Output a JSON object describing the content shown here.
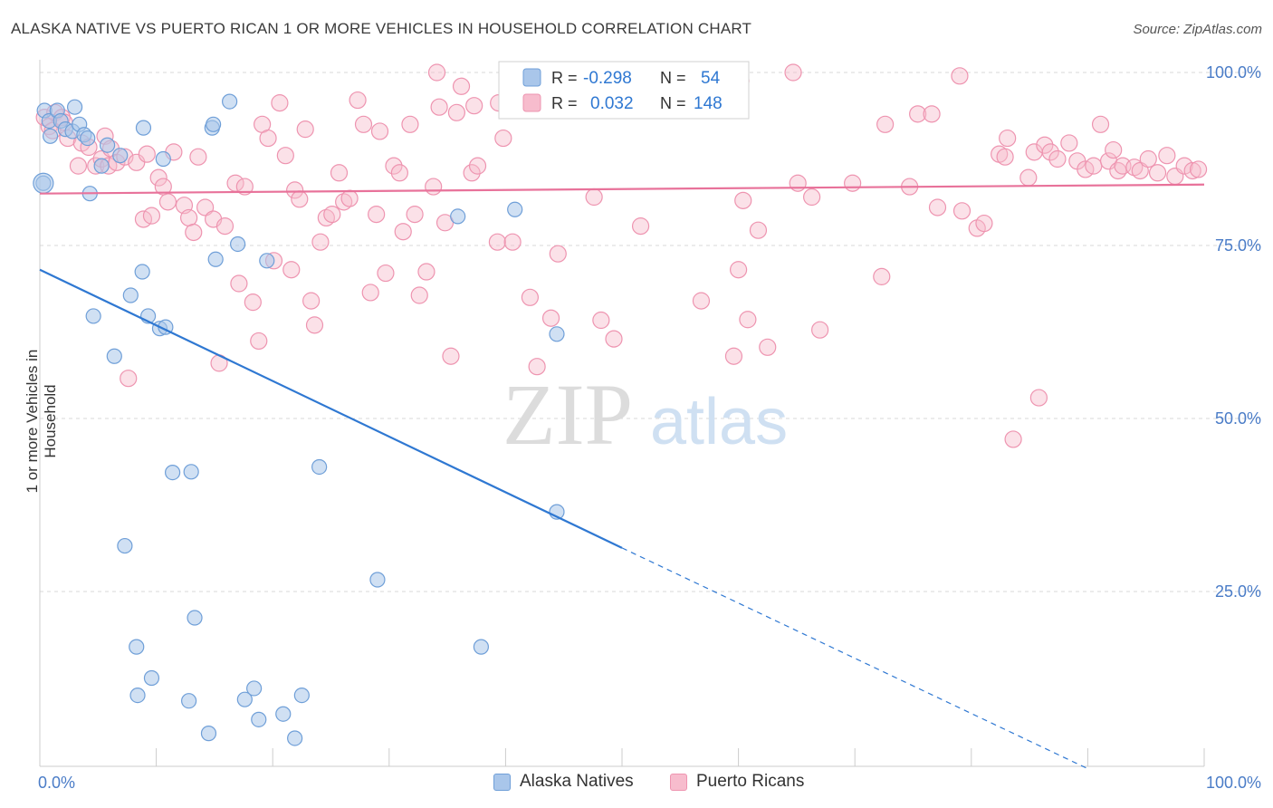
{
  "header": {
    "title": "ALASKA NATIVE VS PUERTO RICAN 1 OR MORE VEHICLES IN HOUSEHOLD CORRELATION CHART",
    "source": "Source: ZipAtlas.com"
  },
  "watermark": {
    "zip": "ZIP",
    "atlas": "atlas"
  },
  "colors": {
    "blue_fill": "#a9c6ea",
    "blue_stroke": "#6f9fd8",
    "blue_line": "#2f78d2",
    "pink_fill": "#f7bccd",
    "pink_stroke": "#ee94b0",
    "pink_line": "#e8729a",
    "tick_text": "#4a7cc7",
    "grid": "#d8d8d8"
  },
  "stats_legend": [
    {
      "r_label": "R =",
      "r_value": "-0.298",
      "n_label": "N =",
      "n_value": "54"
    },
    {
      "r_label": "R =",
      "r_value": "0.032",
      "n_label": "N =",
      "n_value": "148"
    }
  ],
  "chart_data": {
    "type": "scatter",
    "title": "ALASKA NATIVE VS PUERTO RICAN 1 OR MORE VEHICLES IN HOUSEHOLD CORRELATION CHART",
    "xlabel": "",
    "ylabel": "1 or more Vehicles in Household",
    "xlim": [
      0,
      100
    ],
    "ylim": [
      0,
      100
    ],
    "x_tick_labels": [
      "0.0%",
      "100.0%"
    ],
    "y_ticks": [
      {
        "value": 25,
        "label": "25.0%"
      },
      {
        "value": 50,
        "label": "50.0%"
      },
      {
        "value": 75,
        "label": "75.0%"
      },
      {
        "value": 100,
        "label": "100.0%"
      }
    ],
    "grid": true,
    "legend_position": "bottom",
    "series": [
      {
        "name": "Alaska Natives",
        "r": -0.298,
        "n": 54,
        "trend": {
          "x0": 0,
          "y0": 71.5,
          "x1": 50,
          "y1": 31.3,
          "dashed_to_x": 90,
          "dashed_to_y": -0.6
        },
        "points": [
          [
            0.3,
            84.0
          ],
          [
            0.4,
            94.5
          ],
          [
            0.8,
            93.0
          ],
          [
            0.9,
            90.8
          ],
          [
            1.5,
            94.5
          ],
          [
            1.8,
            93.0
          ],
          [
            2.2,
            91.8
          ],
          [
            2.8,
            91.5
          ],
          [
            3.0,
            95.0
          ],
          [
            3.4,
            92.5
          ],
          [
            3.8,
            91.0
          ],
          [
            4.1,
            90.5
          ],
          [
            4.3,
            82.5
          ],
          [
            4.6,
            64.8
          ],
          [
            5.3,
            86.5
          ],
          [
            5.8,
            89.5
          ],
          [
            6.4,
            59.0
          ],
          [
            6.9,
            88.0
          ],
          [
            7.3,
            31.6
          ],
          [
            7.8,
            67.8
          ],
          [
            8.3,
            17.0
          ],
          [
            8.4,
            10.0
          ],
          [
            8.8,
            71.2
          ],
          [
            8.9,
            92.0
          ],
          [
            9.3,
            64.8
          ],
          [
            9.6,
            12.5
          ],
          [
            10.3,
            63.0
          ],
          [
            10.6,
            87.5
          ],
          [
            10.8,
            63.2
          ],
          [
            11.4,
            42.2
          ],
          [
            12.8,
            9.2
          ],
          [
            13.0,
            42.3
          ],
          [
            13.3,
            21.2
          ],
          [
            14.5,
            4.5
          ],
          [
            14.8,
            92.0
          ],
          [
            14.9,
            92.5
          ],
          [
            15.1,
            73.0
          ],
          [
            16.3,
            95.8
          ],
          [
            17.0,
            75.2
          ],
          [
            17.6,
            9.4
          ],
          [
            18.4,
            11.0
          ],
          [
            18.8,
            6.5
          ],
          [
            19.5,
            72.8
          ],
          [
            20.9,
            7.3
          ],
          [
            21.9,
            3.8
          ],
          [
            22.5,
            10.0
          ],
          [
            24.0,
            43.0
          ],
          [
            29.0,
            26.7
          ],
          [
            35.9,
            79.2
          ],
          [
            37.9,
            17.0
          ],
          [
            40.8,
            80.2
          ],
          [
            44.4,
            62.2
          ],
          [
            44.4,
            36.5
          ],
          [
            46.0,
            100.0
          ]
        ]
      },
      {
        "name": "Puerto Ricans",
        "r": 0.032,
        "n": 148,
        "trend": {
          "x0": 0,
          "y0": 82.5,
          "x1": 100,
          "y1": 83.8
        },
        "points": [
          [
            0.4,
            93.5
          ],
          [
            0.8,
            92.2
          ],
          [
            1.1,
            91.6
          ],
          [
            1.3,
            94.2
          ],
          [
            1.9,
            93.5
          ],
          [
            2.1,
            92.8
          ],
          [
            2.4,
            90.5
          ],
          [
            3.3,
            86.5
          ],
          [
            3.6,
            89.8
          ],
          [
            4.2,
            89.2
          ],
          [
            4.8,
            86.5
          ],
          [
            5.3,
            87.5
          ],
          [
            5.6,
            90.8
          ],
          [
            5.9,
            86.5
          ],
          [
            6.1,
            89.0
          ],
          [
            6.6,
            87.0
          ],
          [
            7.3,
            87.8
          ],
          [
            7.6,
            55.8
          ],
          [
            8.3,
            87.0
          ],
          [
            8.9,
            78.8
          ],
          [
            9.2,
            88.2
          ],
          [
            9.6,
            79.3
          ],
          [
            10.2,
            84.8
          ],
          [
            10.6,
            83.5
          ],
          [
            11.0,
            81.3
          ],
          [
            11.5,
            88.5
          ],
          [
            12.4,
            80.8
          ],
          [
            12.8,
            79.0
          ],
          [
            13.2,
            76.9
          ],
          [
            13.6,
            87.8
          ],
          [
            14.2,
            80.5
          ],
          [
            14.9,
            78.8
          ],
          [
            15.4,
            58.0
          ],
          [
            15.9,
            77.8
          ],
          [
            16.8,
            84.0
          ],
          [
            17.1,
            69.5
          ],
          [
            17.6,
            83.5
          ],
          [
            18.3,
            66.8
          ],
          [
            18.8,
            61.2
          ],
          [
            19.1,
            92.5
          ],
          [
            19.6,
            90.5
          ],
          [
            20.1,
            72.8
          ],
          [
            20.6,
            95.6
          ],
          [
            21.1,
            88.0
          ],
          [
            21.6,
            71.5
          ],
          [
            21.9,
            83.0
          ],
          [
            22.3,
            81.7
          ],
          [
            22.8,
            91.8
          ],
          [
            23.3,
            67.0
          ],
          [
            23.6,
            63.5
          ],
          [
            24.1,
            75.5
          ],
          [
            24.6,
            79.0
          ],
          [
            25.1,
            79.5
          ],
          [
            25.7,
            85.5
          ],
          [
            26.1,
            81.3
          ],
          [
            26.6,
            81.8
          ],
          [
            27.3,
            96.0
          ],
          [
            27.8,
            92.5
          ],
          [
            28.4,
            68.2
          ],
          [
            28.9,
            79.5
          ],
          [
            29.2,
            91.5
          ],
          [
            29.7,
            71.0
          ],
          [
            30.4,
            86.5
          ],
          [
            30.9,
            85.5
          ],
          [
            31.2,
            77.0
          ],
          [
            31.8,
            92.5
          ],
          [
            32.2,
            79.5
          ],
          [
            32.6,
            67.8
          ],
          [
            33.2,
            71.2
          ],
          [
            33.8,
            83.5
          ],
          [
            34.1,
            100.0
          ],
          [
            34.3,
            95.0
          ],
          [
            34.8,
            78.3
          ],
          [
            35.3,
            59.0
          ],
          [
            35.8,
            94.2
          ],
          [
            36.2,
            98.0
          ],
          [
            37.1,
            85.5
          ],
          [
            37.3,
            95.2
          ],
          [
            37.6,
            86.5
          ],
          [
            39.3,
            75.5
          ],
          [
            39.4,
            95.6
          ],
          [
            39.8,
            90.5
          ],
          [
            40.6,
            75.5
          ],
          [
            40.9,
            98.0
          ],
          [
            41.3,
            100.0
          ],
          [
            42.1,
            67.5
          ],
          [
            42.7,
            57.5
          ],
          [
            43.9,
            64.5
          ],
          [
            44.5,
            73.8
          ],
          [
            45.3,
            98.5
          ],
          [
            47.6,
            82.0
          ],
          [
            48.2,
            64.2
          ],
          [
            49.3,
            61.5
          ],
          [
            51.6,
            77.8
          ],
          [
            56.8,
            67.0
          ],
          [
            59.6,
            59.0
          ],
          [
            60.0,
            71.5
          ],
          [
            60.4,
            81.5
          ],
          [
            60.8,
            64.3
          ],
          [
            61.7,
            77.2
          ],
          [
            62.5,
            60.3
          ],
          [
            65.1,
            84.0
          ],
          [
            66.3,
            82.0
          ],
          [
            67.0,
            62.8
          ],
          [
            69.8,
            84.0
          ],
          [
            72.3,
            70.5
          ],
          [
            72.6,
            92.5
          ],
          [
            74.7,
            83.5
          ],
          [
            75.4,
            94.0
          ],
          [
            76.6,
            94.0
          ],
          [
            77.1,
            80.5
          ],
          [
            79.0,
            99.5
          ],
          [
            79.2,
            80.0
          ],
          [
            80.5,
            77.5
          ],
          [
            81.1,
            78.2
          ],
          [
            82.4,
            88.2
          ],
          [
            82.9,
            87.8
          ],
          [
            83.1,
            90.5
          ],
          [
            83.6,
            47.0
          ],
          [
            84.9,
            84.8
          ],
          [
            85.4,
            88.5
          ],
          [
            85.8,
            53.0
          ],
          [
            86.3,
            89.5
          ],
          [
            86.8,
            88.5
          ],
          [
            87.4,
            87.5
          ],
          [
            88.4,
            89.8
          ],
          [
            89.1,
            87.2
          ],
          [
            89.8,
            86.0
          ],
          [
            90.5,
            86.5
          ],
          [
            91.1,
            92.5
          ],
          [
            91.8,
            87.2
          ],
          [
            92.2,
            88.8
          ],
          [
            92.6,
            85.8
          ],
          [
            93.0,
            86.5
          ],
          [
            94.0,
            86.3
          ],
          [
            94.5,
            85.8
          ],
          [
            95.2,
            87.5
          ],
          [
            96.0,
            85.5
          ],
          [
            96.8,
            88.0
          ],
          [
            97.5,
            85.0
          ],
          [
            98.3,
            86.5
          ],
          [
            99.0,
            85.8
          ],
          [
            99.5,
            86.0
          ],
          [
            64.7,
            100.0
          ],
          [
            60.2,
            98.8
          ],
          [
            53.6,
            100.0
          ],
          [
            57.0,
            100.0
          ],
          [
            55.8,
            98.2
          ]
        ]
      }
    ]
  }
}
